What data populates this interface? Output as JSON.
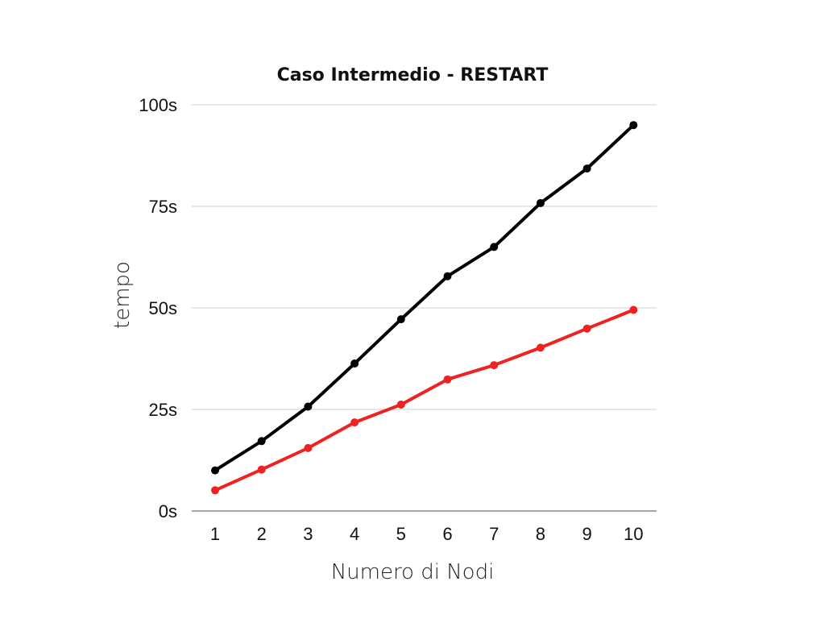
{
  "chart_data": {
    "type": "line",
    "title": "Caso Intermedio - RESTART",
    "xlabel": "Numero di Nodi",
    "ylabel": "tempo",
    "x": [
      1,
      2,
      3,
      4,
      5,
      6,
      7,
      8,
      9,
      10
    ],
    "y_ticks": [
      "0s",
      "25s",
      "50s",
      "75s",
      "100s"
    ],
    "ylim": [
      0,
      100
    ],
    "grid": true,
    "series": [
      {
        "color": "#000000",
        "values": [
          10,
          17.2,
          25.7,
          36.3,
          47.2,
          57.8,
          65,
          75.8,
          84.3,
          95
        ]
      },
      {
        "color": "#ee2222",
        "values": [
          5.1,
          10.2,
          15.5,
          21.8,
          26.2,
          32.4,
          35.9,
          40.2,
          44.9,
          49.5
        ]
      }
    ]
  }
}
